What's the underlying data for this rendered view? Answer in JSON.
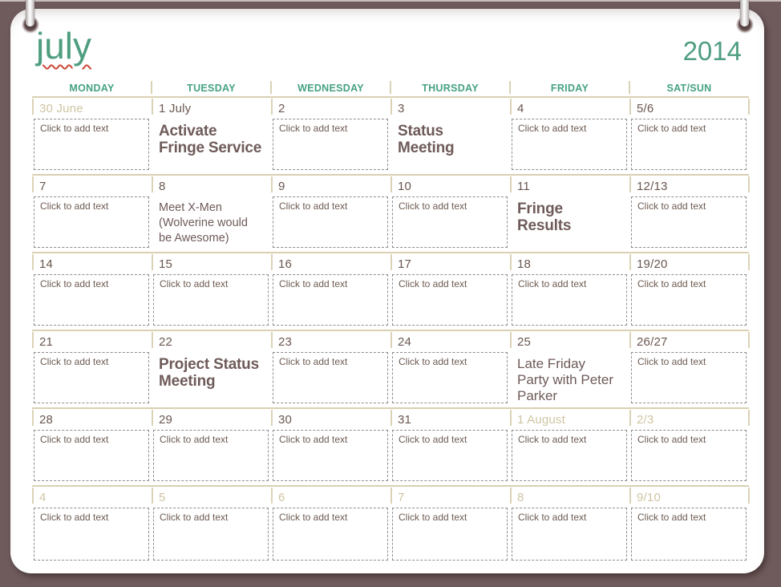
{
  "title": {
    "month": "july",
    "year": "2014"
  },
  "weekday_headers": [
    "MONDAY",
    "TUESDAY",
    "WEDNESDAY",
    "THURSDAY",
    "FRIDAY",
    "SAT/SUN"
  ],
  "cell_placeholder": "Click to add text",
  "colors": {
    "accent_teal": "#4f9e80",
    "header_teal": "#45a184",
    "frame_brown": "#6f5b5b",
    "line_tan": "#d9d0b2",
    "date_brown": "#6a574f",
    "event_brown": "#6e5b59",
    "out_month_tan": "#cfc5a3",
    "squiggle_red": "#cb4a38"
  },
  "weeks": [
    {
      "cells": [
        {
          "date": "30 June",
          "out_of_month": true
        },
        {
          "date": "1 July",
          "event": "Activate\nFringe Service"
        },
        {
          "date": "2"
        },
        {
          "date": "3",
          "event": "Status\nMeeting"
        },
        {
          "date": "4"
        },
        {
          "date": "5/6"
        }
      ]
    },
    {
      "cells": [
        {
          "date": "7"
        },
        {
          "date": "8",
          "event": "Meet X-Men\n(Wolverine would\nbe Awesome)"
        },
        {
          "date": "9"
        },
        {
          "date": "10"
        },
        {
          "date": "11",
          "event": "Fringe\nResults"
        },
        {
          "date": "12/13"
        }
      ]
    },
    {
      "cells": [
        {
          "date": "14"
        },
        {
          "date": "15"
        },
        {
          "date": "16"
        },
        {
          "date": "17"
        },
        {
          "date": "18"
        },
        {
          "date": "19/20"
        }
      ]
    },
    {
      "cells": [
        {
          "date": "21"
        },
        {
          "date": "22",
          "event": "Project Status\nMeeting"
        },
        {
          "date": "23"
        },
        {
          "date": "24"
        },
        {
          "date": "25",
          "event": "Late Friday\nParty with Peter\nParker"
        },
        {
          "date": "26/27"
        }
      ]
    },
    {
      "cells": [
        {
          "date": "28"
        },
        {
          "date": "29"
        },
        {
          "date": "30"
        },
        {
          "date": "31"
        },
        {
          "date": "1 August",
          "out_of_month": true
        },
        {
          "date": "2/3",
          "out_of_month": true
        }
      ]
    },
    {
      "cells": [
        {
          "date": "4",
          "out_of_month": true
        },
        {
          "date": "5",
          "out_of_month": true
        },
        {
          "date": "6",
          "out_of_month": true
        },
        {
          "date": "7",
          "out_of_month": true
        },
        {
          "date": "8",
          "out_of_month": true
        },
        {
          "date": "9/10",
          "out_of_month": true
        }
      ]
    }
  ]
}
